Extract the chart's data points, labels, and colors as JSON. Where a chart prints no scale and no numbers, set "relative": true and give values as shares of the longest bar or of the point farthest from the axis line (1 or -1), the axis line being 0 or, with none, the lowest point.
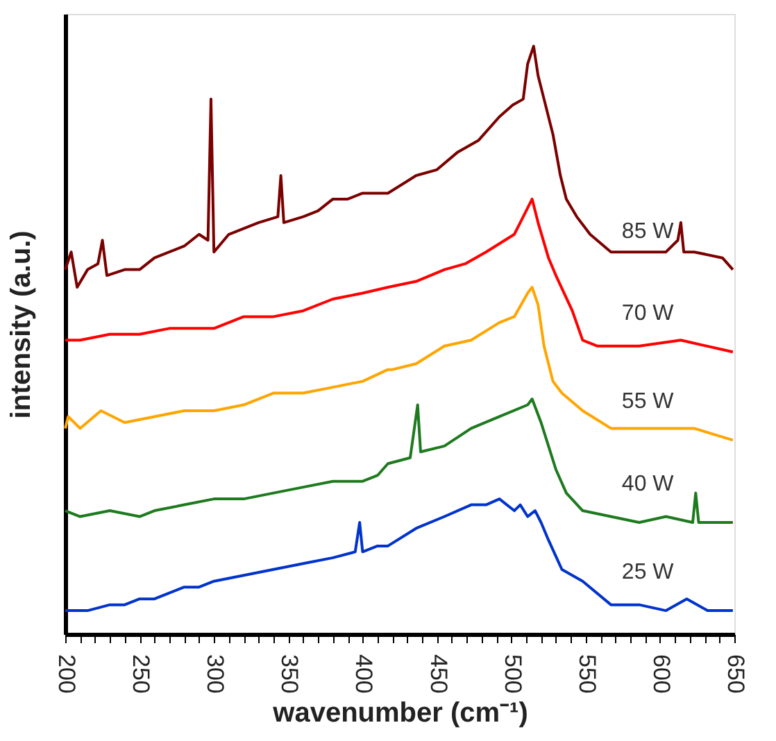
{
  "chart_data": {
    "type": "line",
    "relative": true,
    "xlabel": "wavenumber (cm⁻¹)",
    "ylabel": "intensity (a.u.)",
    "xlim": [
      200,
      650
    ],
    "xticks": [
      200,
      {
        "value": 210,
        "label": null
      },
      {
        "value": 220,
        "label": null
      },
      {
        "value": 230,
        "label": null
      },
      {
        "value": 240,
        "label": null
      },
      250,
      {
        "value": 260,
        "label": null
      },
      {
        "value": 270,
        "label": null
      },
      {
        "value": 280,
        "label": null
      },
      {
        "value": 290,
        "label": null
      },
      300,
      {
        "value": 310,
        "label": null
      },
      {
        "value": 320,
        "label": null
      },
      {
        "value": 330,
        "label": null
      },
      {
        "value": 340,
        "label": null
      },
      350,
      {
        "value": 360,
        "label": null
      },
      {
        "value": 370,
        "label": null
      },
      {
        "value": 380,
        "label": null
      },
      {
        "value": 390,
        "label": null
      },
      400,
      {
        "value": 410,
        "label": null
      },
      {
        "value": 420,
        "label": null
      },
      {
        "value": 430,
        "label": null
      },
      {
        "value": 440,
        "label": null
      },
      450,
      {
        "value": 460,
        "label": null
      },
      {
        "value": 470,
        "label": null
      },
      {
        "value": 480,
        "label": null
      },
      {
        "value": 490,
        "label": null
      },
      500,
      {
        "value": 510,
        "label": null
      },
      {
        "value": 520,
        "label": null
      },
      {
        "value": 530,
        "label": null
      },
      {
        "value": 540,
        "label": null
      },
      550,
      {
        "value": 560,
        "label": null
      },
      {
        "value": 570,
        "label": null
      },
      {
        "value": 580,
        "label": null
      },
      {
        "value": 590,
        "label": null
      },
      600,
      {
        "value": 610,
        "label": null
      },
      {
        "value": 620,
        "label": null
      },
      {
        "value": 630,
        "label": null
      },
      {
        "value": 640,
        "label": null
      },
      650
    ],
    "grid": false,
    "legend": false,
    "marker": "none",
    "line_style": "solid",
    "tick_labels": "x",
    "series": [
      {
        "name": "85 W",
        "color": "#7b0000",
        "x": [
          200,
          204,
          208,
          215,
          222,
          225,
          228,
          240,
          250,
          260,
          270,
          280,
          290,
          296,
          298,
          300,
          310,
          320,
          330,
          343,
          345,
          347,
          360,
          370,
          380,
          390,
          400,
          417,
          436,
          450,
          464,
          478,
          492,
          501,
          508,
          511,
          515,
          518,
          522,
          528,
          533,
          537,
          544,
          553,
          567,
          586,
          604,
          612,
          614,
          616,
          623,
          642,
          649
        ],
        "values": [
          0.62,
          0.65,
          0.59,
          0.62,
          0.63,
          0.67,
          0.61,
          0.62,
          0.62,
          0.64,
          0.65,
          0.66,
          0.68,
          0.67,
          0.91,
          0.65,
          0.68,
          0.69,
          0.7,
          0.71,
          0.78,
          0.7,
          0.71,
          0.72,
          0.74,
          0.74,
          0.75,
          0.75,
          0.78,
          0.79,
          0.82,
          0.84,
          0.88,
          0.9,
          0.91,
          0.97,
          1.0,
          0.95,
          0.91,
          0.85,
          0.78,
          0.74,
          0.71,
          0.68,
          0.65,
          0.65,
          0.65,
          0.67,
          0.7,
          0.65,
          0.65,
          0.64,
          0.62
        ]
      },
      {
        "name": "70 W",
        "color": "#ff0000",
        "x": [
          200,
          210,
          230,
          250,
          270,
          290,
          300,
          320,
          340,
          360,
          380,
          400,
          417,
          436,
          455,
          469,
          483,
          502,
          506,
          514,
          518,
          525,
          530,
          541,
          548,
          558,
          586,
          614,
          649
        ],
        "values": [
          0.5,
          0.5,
          0.51,
          0.51,
          0.52,
          0.52,
          0.52,
          0.54,
          0.54,
          0.55,
          0.57,
          0.58,
          0.59,
          0.6,
          0.62,
          0.63,
          0.65,
          0.68,
          0.7,
          0.74,
          0.7,
          0.64,
          0.61,
          0.55,
          0.5,
          0.49,
          0.49,
          0.5,
          0.48
        ]
      },
      {
        "name": "55 W",
        "color": "#ffa500",
        "x": [
          200,
          202,
          210,
          224,
          240,
          260,
          280,
          300,
          320,
          340,
          360,
          380,
          400,
          417,
          420,
          436,
          455,
          473,
          492,
          502,
          511,
          514,
          518,
          522,
          528,
          534,
          548,
          567,
          586,
          604,
          623,
          649
        ],
        "values": [
          0.35,
          0.37,
          0.35,
          0.38,
          0.36,
          0.37,
          0.38,
          0.38,
          0.39,
          0.41,
          0.41,
          0.42,
          0.43,
          0.45,
          0.45,
          0.46,
          0.49,
          0.5,
          0.53,
          0.54,
          0.58,
          0.59,
          0.56,
          0.49,
          0.43,
          0.41,
          0.38,
          0.35,
          0.35,
          0.35,
          0.35,
          0.33
        ]
      },
      {
        "name": "40 W",
        "color": "#1e7a1e",
        "x": [
          200,
          210,
          230,
          250,
          260,
          280,
          300,
          320,
          340,
          360,
          380,
          400,
          410,
          417,
          432,
          437,
          439,
          455,
          473,
          492,
          511,
          514,
          520,
          525,
          530,
          537,
          548,
          567,
          586,
          604,
          622,
          624,
          626,
          649
        ],
        "values": [
          0.21,
          0.2,
          0.21,
          0.2,
          0.21,
          0.22,
          0.23,
          0.23,
          0.24,
          0.25,
          0.26,
          0.26,
          0.27,
          0.29,
          0.3,
          0.39,
          0.31,
          0.32,
          0.35,
          0.37,
          0.39,
          0.4,
          0.36,
          0.32,
          0.28,
          0.24,
          0.21,
          0.2,
          0.19,
          0.2,
          0.19,
          0.24,
          0.19,
          0.19
        ]
      },
      {
        "name": "25 W",
        "color": "#0033cc",
        "x": [
          200,
          215,
          230,
          240,
          250,
          260,
          270,
          280,
          290,
          300,
          320,
          340,
          360,
          380,
          395,
          398,
          400,
          410,
          417,
          436,
          455,
          473,
          483,
          492,
          502,
          506,
          511,
          516,
          520,
          525,
          534,
          548,
          567,
          586,
          604,
          618,
          632,
          649
        ],
        "values": [
          0.04,
          0.04,
          0.05,
          0.05,
          0.06,
          0.06,
          0.07,
          0.08,
          0.08,
          0.09,
          0.1,
          0.11,
          0.12,
          0.13,
          0.14,
          0.19,
          0.14,
          0.15,
          0.15,
          0.18,
          0.2,
          0.22,
          0.22,
          0.23,
          0.21,
          0.22,
          0.2,
          0.21,
          0.19,
          0.16,
          0.11,
          0.09,
          0.05,
          0.05,
          0.04,
          0.06,
          0.04,
          0.04
        ]
      }
    ]
  }
}
